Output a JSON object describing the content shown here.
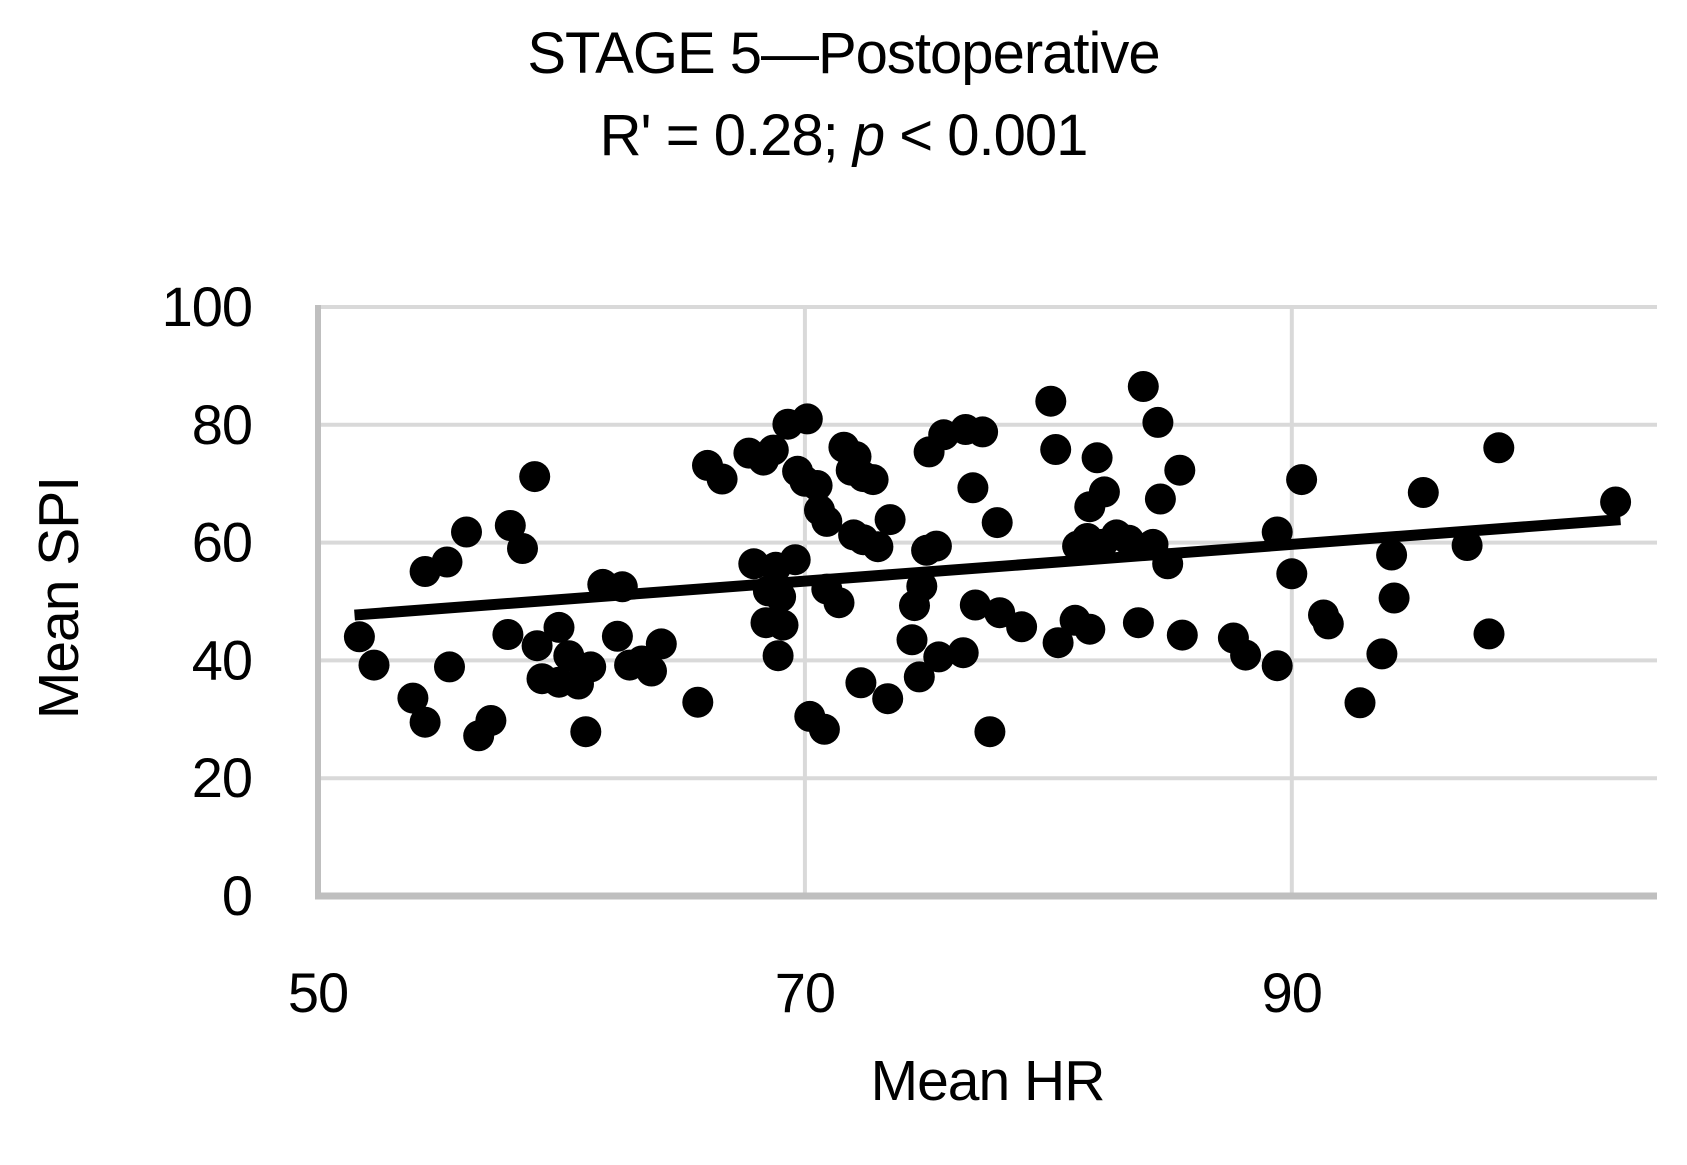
{
  "title": "STAGE 5—Postoperative",
  "subtitle": {
    "part1": "R' = 0.28; ",
    "p": "p",
    "part2": " < 0.001"
  },
  "axis": {
    "x_label": "Mean HR",
    "y_label": "Mean SPI"
  },
  "colors": {
    "marker": "#000000",
    "trendline": "#000000",
    "gridline": "#d9d9d9",
    "axisline": "#bfbfbf",
    "background": "#ffffff"
  },
  "chart_data": {
    "type": "scatter",
    "title": "STAGE 5—Postoperative",
    "subtitle": "R' = 0.28; p < 0.001",
    "xlabel": "Mean HR",
    "ylabel": "Mean SPI",
    "xlim": [
      50,
      105
    ],
    "ylim": [
      0,
      100
    ],
    "x_ticks": [
      50,
      70,
      90
    ],
    "y_ticks": [
      0,
      20,
      40,
      60,
      80,
      100
    ],
    "grid": true,
    "legend": "none",
    "marker_color": "#000000",
    "points": [
      [
        51.7,
        44.0
      ],
      [
        52.3,
        39.2
      ],
      [
        53.9,
        33.6
      ],
      [
        54.4,
        29.5
      ],
      [
        54.4,
        55.1
      ],
      [
        55.3,
        56.7
      ],
      [
        56.1,
        61.8
      ],
      [
        55.4,
        38.9
      ],
      [
        56.6,
        27.2
      ],
      [
        57.1,
        29.8
      ],
      [
        57.9,
        62.9
      ],
      [
        58.4,
        59.0
      ],
      [
        57.8,
        44.4
      ],
      [
        58.9,
        71.2
      ],
      [
        59.0,
        42.5
      ],
      [
        59.2,
        36.9
      ],
      [
        59.9,
        45.6
      ],
      [
        60.3,
        40.8
      ],
      [
        59.9,
        36.3
      ],
      [
        60.7,
        36.0
      ],
      [
        61.2,
        38.9
      ],
      [
        61.0,
        27.9
      ],
      [
        61.7,
        52.9
      ],
      [
        62.5,
        52.5
      ],
      [
        62.3,
        44.1
      ],
      [
        62.8,
        39.2
      ],
      [
        63.3,
        39.9
      ],
      [
        63.7,
        38.2
      ],
      [
        64.1,
        42.8
      ],
      [
        65.6,
        32.9
      ],
      [
        66.0,
        73.1
      ],
      [
        66.6,
        70.8
      ],
      [
        67.7,
        75.2
      ],
      [
        68.3,
        74.0
      ],
      [
        67.9,
        56.4
      ],
      [
        68.8,
        55.8
      ],
      [
        68.5,
        51.8
      ],
      [
        69.0,
        50.8
      ],
      [
        69.6,
        57.1
      ],
      [
        68.4,
        46.4
      ],
      [
        69.1,
        46.0
      ],
      [
        68.9,
        40.8
      ],
      [
        68.7,
        75.7
      ],
      [
        69.7,
        72.1
      ],
      [
        69.3,
        80.1
      ],
      [
        70.1,
        81.0
      ],
      [
        70.0,
        70.4
      ],
      [
        70.5,
        69.7
      ],
      [
        71.6,
        76.2
      ],
      [
        72.1,
        74.6
      ],
      [
        71.9,
        72.3
      ],
      [
        72.4,
        71.2
      ],
      [
        72.8,
        70.7
      ],
      [
        70.6,
        65.5
      ],
      [
        70.9,
        63.6
      ],
      [
        72.0,
        61.3
      ],
      [
        72.4,
        60.5
      ],
      [
        73.5,
        63.9
      ],
      [
        70.9,
        52.1
      ],
      [
        71.4,
        49.8
      ],
      [
        73.0,
        59.3
      ],
      [
        75.0,
        58.7
      ],
      [
        75.4,
        59.4
      ],
      [
        74.8,
        52.6
      ],
      [
        74.5,
        49.3
      ],
      [
        74.4,
        43.5
      ],
      [
        70.2,
        30.5
      ],
      [
        70.8,
        28.3
      ],
      [
        72.3,
        36.2
      ],
      [
        73.4,
        33.5
      ],
      [
        74.7,
        37.2
      ],
      [
        75.5,
        40.6
      ],
      [
        76.5,
        41.3
      ],
      [
        77.0,
        49.4
      ],
      [
        78.0,
        48.1
      ],
      [
        78.9,
        45.7
      ],
      [
        77.6,
        27.9
      ],
      [
        75.1,
        75.4
      ],
      [
        75.7,
        78.3
      ],
      [
        76.6,
        79.2
      ],
      [
        77.3,
        78.8
      ],
      [
        76.9,
        69.3
      ],
      [
        77.9,
        63.4
      ],
      [
        80.1,
        84.0
      ],
      [
        83.9,
        86.5
      ],
      [
        84.5,
        80.4
      ],
      [
        80.3,
        75.8
      ],
      [
        82.0,
        74.4
      ],
      [
        82.3,
        68.6
      ],
      [
        81.7,
        66.1
      ],
      [
        81.2,
        59.4
      ],
      [
        81.6,
        60.7
      ],
      [
        82.2,
        59.7
      ],
      [
        82.8,
        61.3
      ],
      [
        83.3,
        60.4
      ],
      [
        84.3,
        59.7
      ],
      [
        84.6,
        67.4
      ],
      [
        85.4,
        72.3
      ],
      [
        84.9,
        56.4
      ],
      [
        80.4,
        43.0
      ],
      [
        81.1,
        46.8
      ],
      [
        81.7,
        45.3
      ],
      [
        83.7,
        46.4
      ],
      [
        85.5,
        44.3
      ],
      [
        87.6,
        43.8
      ],
      [
        88.1,
        40.9
      ],
      [
        89.4,
        39.1
      ],
      [
        90.4,
        70.7
      ],
      [
        89.4,
        61.8
      ],
      [
        90.0,
        54.7
      ],
      [
        91.3,
        47.7
      ],
      [
        91.5,
        46.2
      ],
      [
        93.7,
        41.1
      ],
      [
        92.8,
        32.8
      ],
      [
        94.1,
        57.9
      ],
      [
        94.2,
        50.6
      ],
      [
        95.4,
        68.5
      ],
      [
        97.2,
        59.5
      ],
      [
        98.1,
        44.5
      ],
      [
        98.5,
        76.1
      ],
      [
        103.3,
        66.9
      ]
    ],
    "trendline": {
      "x1": 51.5,
      "y1": 47.7,
      "x2": 103.5,
      "y2": 63.9
    }
  }
}
